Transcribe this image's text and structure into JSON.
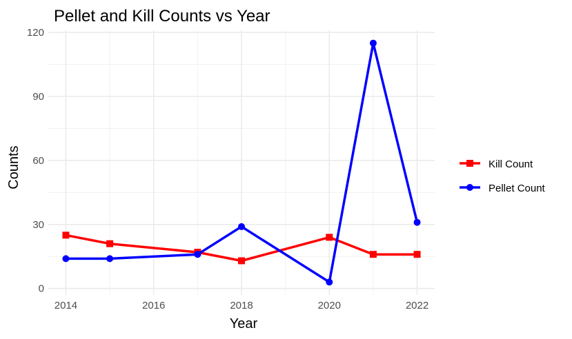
{
  "chart_data": {
    "type": "line",
    "title": "Pellet and Kill Counts vs Year",
    "xlabel": "Year",
    "ylabel": "Counts",
    "xlim": [
      2013.6,
      2022.4
    ],
    "ylim": [
      -3,
      121
    ],
    "x_ticks": [
      2014,
      2016,
      2018,
      2020,
      2022
    ],
    "y_ticks": [
      0,
      30,
      60,
      90,
      120
    ],
    "grid": true,
    "legend_position": "right",
    "series": [
      {
        "name": "Kill Count",
        "color": "#ff0000",
        "marker": "square",
        "x": [
          2014,
          2015,
          2017,
          2018,
          2020,
          2021,
          2022
        ],
        "y": [
          25,
          21,
          17,
          13,
          24,
          16,
          16
        ]
      },
      {
        "name": "Pellet Count",
        "color": "#0000ff",
        "marker": "circle",
        "x": [
          2014,
          2015,
          2017,
          2018,
          2020,
          2021,
          2022
        ],
        "y": [
          14,
          14,
          16,
          29,
          3,
          115,
          31
        ]
      }
    ]
  }
}
